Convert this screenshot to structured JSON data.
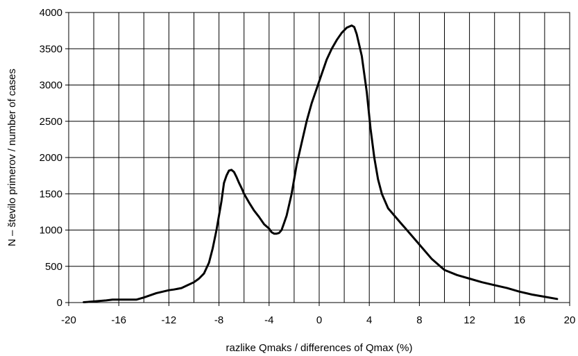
{
  "chart_data": {
    "type": "line",
    "title": "",
    "xlabel": "razlike Qmaks / differences of Qmax (%)",
    "ylabel": "N – število primerov / number of cases",
    "xlim": [
      -20,
      20
    ],
    "ylim": [
      0,
      4000
    ],
    "x_ticks": [
      -20,
      -16,
      -12,
      -8,
      -4,
      0,
      4,
      8,
      12,
      16,
      20
    ],
    "x_tick_labels": [
      "-20",
      "-16",
      "-12",
      "-8",
      "-4",
      "0",
      "4",
      "8",
      "12",
      "16",
      "20"
    ],
    "y_ticks": [
      0,
      500,
      1000,
      1500,
      2000,
      2500,
      3000,
      3500,
      4000
    ],
    "y_tick_labels": [
      "0",
      "500",
      "1000",
      "1500",
      "2000",
      "2500",
      "3000",
      "3500",
      "4000"
    ],
    "x_minor_step": 2,
    "grid": true,
    "legend": "none",
    "line_color": "#000000",
    "series": [
      {
        "x": [
          -18.8,
          -18,
          -17,
          -16.5,
          -16,
          -15.5,
          -15,
          -14.6,
          -14,
          -13.5,
          -13,
          -12.5,
          -12,
          -11.6,
          -11,
          -10.5,
          -10,
          -9.6,
          -9.2,
          -8.8,
          -8.5,
          -8.2,
          -8.0,
          -7.8,
          -7.6,
          -7.4,
          -7.2,
          -7.0,
          -6.8,
          -6.6,
          -6.4,
          -6.2,
          -6.0,
          -5.6,
          -5.2,
          -4.8,
          -4.4,
          -4.0,
          -3.8,
          -3.6,
          -3.4,
          -3.2,
          -3.0,
          -2.8,
          -2.6,
          -2.2,
          -1.8,
          -1.4,
          -1.0,
          -0.6,
          -0.2,
          0.2,
          0.6,
          1.0,
          1.4,
          1.8,
          2.2,
          2.6,
          2.8,
          3.0,
          3.4,
          3.8,
          4.1,
          4.4,
          4.7,
          5.0,
          5.5,
          6.0,
          6.5,
          7.0,
          8.0,
          9.0,
          10.0,
          11.0,
          12.0,
          13.0,
          14.0,
          15.0,
          16.0,
          17.0,
          18.0,
          19.0
        ],
        "values": [
          5,
          15,
          30,
          40,
          40,
          40,
          40,
          40,
          70,
          100,
          130,
          150,
          170,
          180,
          200,
          240,
          280,
          330,
          400,
          550,
          750,
          1000,
          1200,
          1400,
          1650,
          1750,
          1820,
          1830,
          1800,
          1730,
          1650,
          1580,
          1500,
          1380,
          1270,
          1180,
          1080,
          1020,
          970,
          950,
          950,
          960,
          1000,
          1100,
          1200,
          1500,
          1900,
          2200,
          2500,
          2750,
          2950,
          3150,
          3350,
          3500,
          3620,
          3720,
          3790,
          3820,
          3800,
          3700,
          3400,
          2900,
          2400,
          2000,
          1700,
          1500,
          1300,
          1200,
          1100,
          1000,
          800,
          600,
          450,
          380,
          330,
          280,
          240,
          200,
          150,
          110,
          80,
          50
        ]
      }
    ]
  }
}
